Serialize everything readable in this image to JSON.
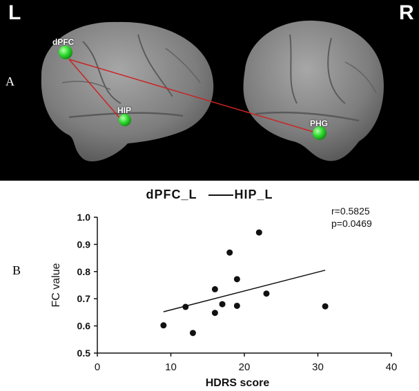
{
  "panel_a": {
    "letter": "A",
    "left_label": "L",
    "right_label": "R",
    "rois": [
      {
        "label": "dPFC"
      },
      {
        "label": "HIP"
      },
      {
        "label": "PHG"
      }
    ],
    "colors": {
      "node": "#33dd33",
      "edge": "#cc2222",
      "background": "#000000"
    }
  },
  "panel_b": {
    "letter": "B",
    "title_left": "dPFC_L",
    "title_right": "HIP_L",
    "stats": {
      "r": "r=0.5825",
      "p": "p=0.0469"
    }
  },
  "chart_data": {
    "type": "scatter",
    "title": "dPFC_L ——HIP_L",
    "xlabel": "HDRS score",
    "ylabel": "FC value",
    "xlim": [
      0,
      40
    ],
    "ylim": [
      0.5,
      1.0
    ],
    "xticks": [
      0,
      10,
      20,
      30,
      40
    ],
    "yticks": [
      0.5,
      0.6,
      0.7,
      0.8,
      0.9,
      1.0
    ],
    "xtick_labels": [
      "0",
      "10",
      "20",
      "30",
      "40"
    ],
    "ytick_labels": [
      "0.5",
      "0.6",
      "0.7",
      "0.8",
      "0.9",
      "1.0"
    ],
    "points": [
      {
        "x": 9,
        "y": 0.602
      },
      {
        "x": 12,
        "y": 0.67
      },
      {
        "x": 13,
        "y": 0.574
      },
      {
        "x": 16,
        "y": 0.735
      },
      {
        "x": 16,
        "y": 0.648
      },
      {
        "x": 17,
        "y": 0.68
      },
      {
        "x": 18,
        "y": 0.87
      },
      {
        "x": 19,
        "y": 0.772
      },
      {
        "x": 19,
        "y": 0.674
      },
      {
        "x": 22,
        "y": 0.944
      },
      {
        "x": 23,
        "y": 0.719
      },
      {
        "x": 31,
        "y": 0.672
      }
    ],
    "fit_line": {
      "x": [
        9,
        31
      ],
      "y": [
        0.652,
        0.805
      ]
    },
    "grid": false
  }
}
